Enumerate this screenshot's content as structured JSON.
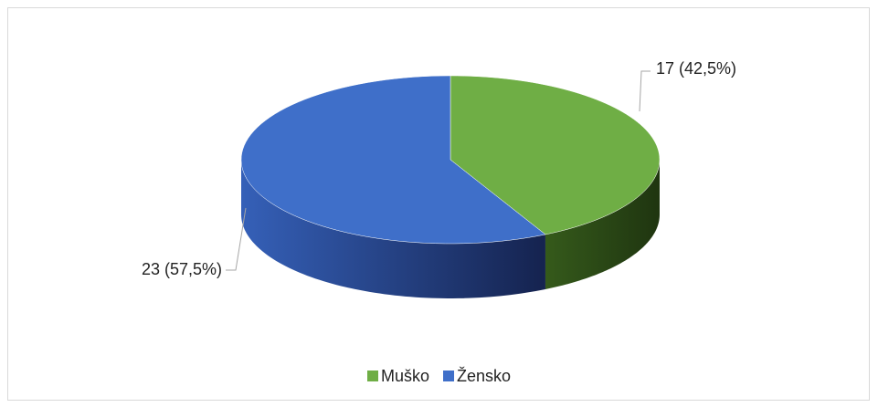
{
  "chart_data": {
    "type": "pie",
    "categories": [
      "Muško",
      "Žensko"
    ],
    "values": [
      17,
      23
    ],
    "value_labels": [
      "17 (42,5%)",
      "23 (57,5%)"
    ],
    "colors": [
      "#6fae45",
      "#3f6fc9"
    ],
    "side_colors": [
      "#2d4a17",
      "#1f3a80"
    ],
    "legend": "bottom"
  }
}
